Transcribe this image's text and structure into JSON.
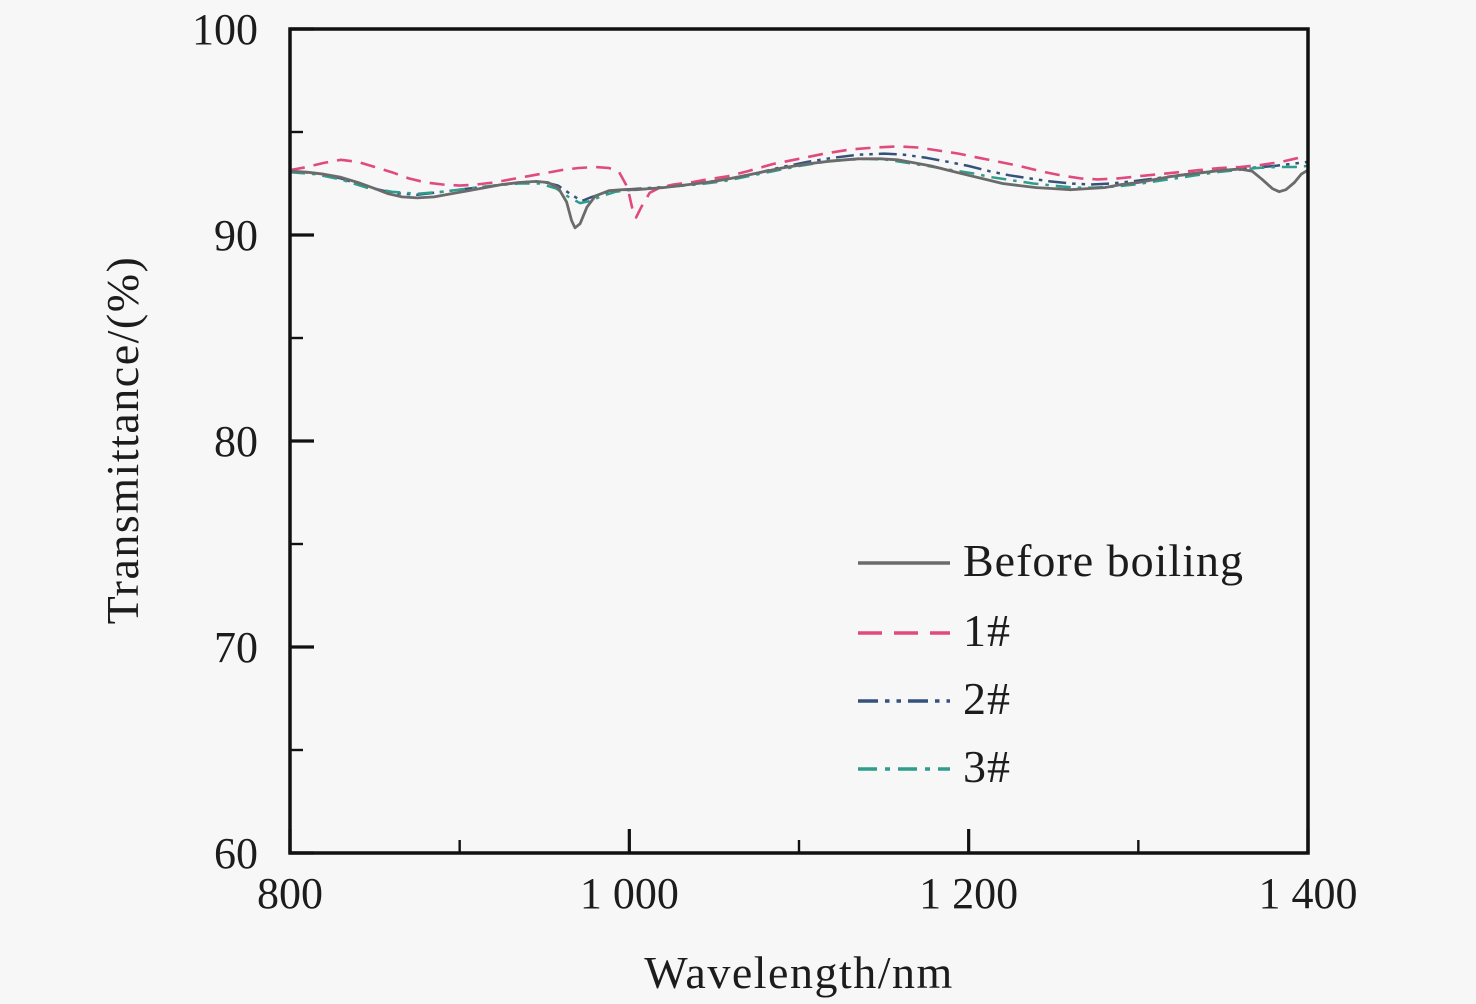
{
  "figure": {
    "background_color": "#f7f7f8",
    "spine_color": "#111111",
    "text_color": "#1c1c1c"
  },
  "chart_data": {
    "type": "line",
    "title": "",
    "xlabel": "Wavelength/nm",
    "ylabel": "Transmittance/(%)",
    "xlim": [
      800,
      1400
    ],
    "ylim": [
      60,
      100
    ],
    "grid": false,
    "legend_position": "inside lower-right",
    "x_major_ticks": [
      {
        "v": 800,
        "label": "800"
      },
      {
        "v": 1000,
        "label": "1 000"
      },
      {
        "v": 1200,
        "label": "1 200"
      },
      {
        "v": 1400,
        "label": "1 400"
      }
    ],
    "x_minor_ticks": [
      900,
      1100,
      1300
    ],
    "y_major_ticks": [
      {
        "v": 100,
        "label": "100"
      },
      {
        "v": 90,
        "label": "90"
      },
      {
        "v": 80,
        "label": "80"
      },
      {
        "v": 70,
        "label": "70"
      },
      {
        "v": 60,
        "label": "60"
      }
    ],
    "y_minor_ticks": [
      95,
      85,
      75,
      65
    ],
    "series": [
      {
        "name": "Before boiling",
        "style": "solid",
        "color": "#6b6b6b",
        "width": 2.8,
        "points": [
          [
            800,
            93.1
          ],
          [
            810,
            93.05
          ],
          [
            820,
            92.95
          ],
          [
            830,
            92.8
          ],
          [
            840,
            92.55
          ],
          [
            850,
            92.25
          ],
          [
            858,
            92.0
          ],
          [
            866,
            91.85
          ],
          [
            875,
            91.8
          ],
          [
            885,
            91.85
          ],
          [
            895,
            92.0
          ],
          [
            905,
            92.15
          ],
          [
            915,
            92.3
          ],
          [
            925,
            92.45
          ],
          [
            935,
            92.55
          ],
          [
            945,
            92.6
          ],
          [
            952,
            92.55
          ],
          [
            958,
            92.3
          ],
          [
            963,
            91.6
          ],
          [
            966,
            90.7
          ],
          [
            968,
            90.35
          ],
          [
            971,
            90.55
          ],
          [
            975,
            91.35
          ],
          [
            980,
            91.9
          ],
          [
            988,
            92.15
          ],
          [
            996,
            92.2
          ],
          [
            1004,
            92.2
          ],
          [
            1012,
            92.25
          ],
          [
            1020,
            92.3
          ],
          [
            1030,
            92.4
          ],
          [
            1040,
            92.5
          ],
          [
            1050,
            92.6
          ],
          [
            1060,
            92.75
          ],
          [
            1075,
            93.0
          ],
          [
            1090,
            93.25
          ],
          [
            1105,
            93.45
          ],
          [
            1120,
            93.6
          ],
          [
            1135,
            93.7
          ],
          [
            1148,
            93.7
          ],
          [
            1158,
            93.65
          ],
          [
            1168,
            93.5
          ],
          [
            1178,
            93.35
          ],
          [
            1190,
            93.1
          ],
          [
            1200,
            92.9
          ],
          [
            1210,
            92.7
          ],
          [
            1220,
            92.5
          ],
          [
            1230,
            92.4
          ],
          [
            1240,
            92.3
          ],
          [
            1250,
            92.25
          ],
          [
            1260,
            92.2
          ],
          [
            1270,
            92.25
          ],
          [
            1280,
            92.3
          ],
          [
            1290,
            92.45
          ],
          [
            1300,
            92.55
          ],
          [
            1310,
            92.7
          ],
          [
            1320,
            92.85
          ],
          [
            1330,
            92.95
          ],
          [
            1340,
            93.05
          ],
          [
            1350,
            93.15
          ],
          [
            1360,
            93.2
          ],
          [
            1367,
            93.1
          ],
          [
            1373,
            92.7
          ],
          [
            1379,
            92.25
          ],
          [
            1383,
            92.1
          ],
          [
            1387,
            92.2
          ],
          [
            1392,
            92.55
          ],
          [
            1396,
            92.95
          ],
          [
            1400,
            93.15
          ]
        ]
      },
      {
        "name": "1#",
        "style": "dashed",
        "color": "#e04a7c",
        "width": 2.6,
        "points": [
          [
            800,
            93.15
          ],
          [
            810,
            93.3
          ],
          [
            820,
            93.5
          ],
          [
            830,
            93.65
          ],
          [
            840,
            93.55
          ],
          [
            850,
            93.3
          ],
          [
            860,
            93.05
          ],
          [
            870,
            92.75
          ],
          [
            880,
            92.55
          ],
          [
            890,
            92.45
          ],
          [
            900,
            92.4
          ],
          [
            910,
            92.45
          ],
          [
            920,
            92.55
          ],
          [
            930,
            92.7
          ],
          [
            940,
            92.85
          ],
          [
            950,
            93.0
          ],
          [
            960,
            93.15
          ],
          [
            970,
            93.25
          ],
          [
            980,
            93.3
          ],
          [
            988,
            93.25
          ],
          [
            994,
            93.05
          ],
          [
            999,
            92.3
          ],
          [
            1002,
            91.2
          ],
          [
            1004,
            90.85
          ],
          [
            1007,
            91.35
          ],
          [
            1012,
            92.05
          ],
          [
            1018,
            92.3
          ],
          [
            1026,
            92.45
          ],
          [
            1036,
            92.55
          ],
          [
            1046,
            92.7
          ],
          [
            1058,
            92.85
          ],
          [
            1070,
            93.1
          ],
          [
            1085,
            93.45
          ],
          [
            1100,
            93.7
          ],
          [
            1115,
            93.95
          ],
          [
            1130,
            94.15
          ],
          [
            1145,
            94.25
          ],
          [
            1158,
            94.3
          ],
          [
            1170,
            94.25
          ],
          [
            1182,
            94.1
          ],
          [
            1194,
            93.95
          ],
          [
            1206,
            93.75
          ],
          [
            1218,
            93.55
          ],
          [
            1230,
            93.35
          ],
          [
            1242,
            93.1
          ],
          [
            1254,
            92.9
          ],
          [
            1266,
            92.75
          ],
          [
            1276,
            92.7
          ],
          [
            1288,
            92.75
          ],
          [
            1300,
            92.85
          ],
          [
            1312,
            92.95
          ],
          [
            1324,
            93.05
          ],
          [
            1336,
            93.15
          ],
          [
            1348,
            93.25
          ],
          [
            1360,
            93.3
          ],
          [
            1372,
            93.4
          ],
          [
            1384,
            93.55
          ],
          [
            1392,
            93.7
          ],
          [
            1400,
            93.85
          ]
        ]
      },
      {
        "name": "2#",
        "style": "dash-dot-dot",
        "color": "#35527c",
        "width": 2.5,
        "points": [
          [
            800,
            93.1
          ],
          [
            815,
            93.0
          ],
          [
            830,
            92.75
          ],
          [
            845,
            92.35
          ],
          [
            860,
            92.05
          ],
          [
            875,
            91.95
          ],
          [
            890,
            92.1
          ],
          [
            905,
            92.25
          ],
          [
            920,
            92.4
          ],
          [
            935,
            92.55
          ],
          [
            948,
            92.6
          ],
          [
            958,
            92.4
          ],
          [
            966,
            91.95
          ],
          [
            972,
            91.65
          ],
          [
            978,
            91.85
          ],
          [
            986,
            92.05
          ],
          [
            996,
            92.2
          ],
          [
            1006,
            92.25
          ],
          [
            1016,
            92.3
          ],
          [
            1030,
            92.4
          ],
          [
            1045,
            92.55
          ],
          [
            1060,
            92.75
          ],
          [
            1075,
            93.0
          ],
          [
            1090,
            93.3
          ],
          [
            1105,
            93.55
          ],
          [
            1120,
            93.75
          ],
          [
            1135,
            93.9
          ],
          [
            1150,
            93.95
          ],
          [
            1162,
            93.9
          ],
          [
            1175,
            93.75
          ],
          [
            1188,
            93.55
          ],
          [
            1200,
            93.35
          ],
          [
            1212,
            93.1
          ],
          [
            1224,
            92.9
          ],
          [
            1236,
            92.75
          ],
          [
            1248,
            92.6
          ],
          [
            1260,
            92.5
          ],
          [
            1272,
            92.45
          ],
          [
            1284,
            92.5
          ],
          [
            1296,
            92.6
          ],
          [
            1310,
            92.75
          ],
          [
            1324,
            92.9
          ],
          [
            1338,
            93.05
          ],
          [
            1352,
            93.15
          ],
          [
            1366,
            93.25
          ],
          [
            1380,
            93.35
          ],
          [
            1390,
            93.45
          ],
          [
            1400,
            93.55
          ]
        ]
      },
      {
        "name": "3#",
        "style": "dash-dot",
        "color": "#2f9d8b",
        "width": 2.5,
        "points": [
          [
            800,
            93.05
          ],
          [
            815,
            92.95
          ],
          [
            830,
            92.7
          ],
          [
            845,
            92.3
          ],
          [
            860,
            92.1
          ],
          [
            875,
            92.0
          ],
          [
            890,
            92.1
          ],
          [
            905,
            92.25
          ],
          [
            920,
            92.4
          ],
          [
            935,
            92.5
          ],
          [
            947,
            92.5
          ],
          [
            957,
            92.25
          ],
          [
            965,
            91.8
          ],
          [
            971,
            91.55
          ],
          [
            977,
            91.65
          ],
          [
            984,
            91.9
          ],
          [
            992,
            92.1
          ],
          [
            1002,
            92.2
          ],
          [
            1012,
            92.25
          ],
          [
            1025,
            92.35
          ],
          [
            1040,
            92.45
          ],
          [
            1055,
            92.6
          ],
          [
            1070,
            92.85
          ],
          [
            1085,
            93.1
          ],
          [
            1100,
            93.35
          ],
          [
            1115,
            93.55
          ],
          [
            1128,
            93.65
          ],
          [
            1140,
            93.7
          ],
          [
            1152,
            93.65
          ],
          [
            1164,
            93.5
          ],
          [
            1176,
            93.35
          ],
          [
            1190,
            93.15
          ],
          [
            1202,
            93.0
          ],
          [
            1214,
            92.8
          ],
          [
            1226,
            92.65
          ],
          [
            1238,
            92.5
          ],
          [
            1250,
            92.4
          ],
          [
            1262,
            92.3
          ],
          [
            1274,
            92.3
          ],
          [
            1286,
            92.35
          ],
          [
            1298,
            92.45
          ],
          [
            1310,
            92.6
          ],
          [
            1322,
            92.75
          ],
          [
            1334,
            92.9
          ],
          [
            1346,
            93.05
          ],
          [
            1358,
            93.15
          ],
          [
            1370,
            93.25
          ],
          [
            1382,
            93.3
          ],
          [
            1392,
            93.3
          ],
          [
            1400,
            93.35
          ]
        ]
      }
    ]
  }
}
